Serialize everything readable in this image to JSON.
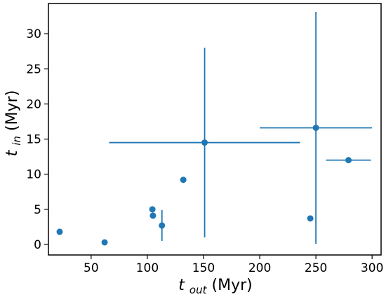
{
  "chart_data": {
    "type": "scatter",
    "title": "",
    "xlabel": {
      "main": "t",
      "sub": "out",
      "unit": " (Myr)"
    },
    "ylabel": {
      "main": "t",
      "sub": "in",
      "unit": " (Myr)"
    },
    "xlim": [
      12,
      308
    ],
    "ylim": [
      -1.5,
      34.3
    ],
    "xticks": [
      50,
      100,
      150,
      200,
      250,
      300
    ],
    "yticks": [
      0,
      5,
      10,
      15,
      20,
      25,
      30
    ],
    "grid": false,
    "legend": null,
    "colors": {
      "series": "#1f77b4",
      "axes": "#000000",
      "background": "#ffffff"
    },
    "points": [
      {
        "x": 22,
        "y": 1.8
      },
      {
        "x": 62,
        "y": 0.3
      },
      {
        "x": 104.5,
        "y": 5.0
      },
      {
        "x": 105,
        "y": 4.1
      },
      {
        "x": 113,
        "y": 2.7,
        "yerr": [
          2.2,
          2.2
        ]
      },
      {
        "x": 132,
        "y": 9.2
      },
      {
        "x": 151,
        "y": 14.5,
        "xerr": [
          85,
          85
        ],
        "yerr": [
          13.5,
          13.5
        ]
      },
      {
        "x": 245,
        "y": 3.7
      },
      {
        "x": 250,
        "y": 16.6,
        "xerr": [
          50,
          50
        ],
        "yerr": [
          16.5,
          16.5
        ]
      },
      {
        "x": 279,
        "y": 12.0,
        "xerr": [
          20,
          20
        ]
      }
    ]
  }
}
